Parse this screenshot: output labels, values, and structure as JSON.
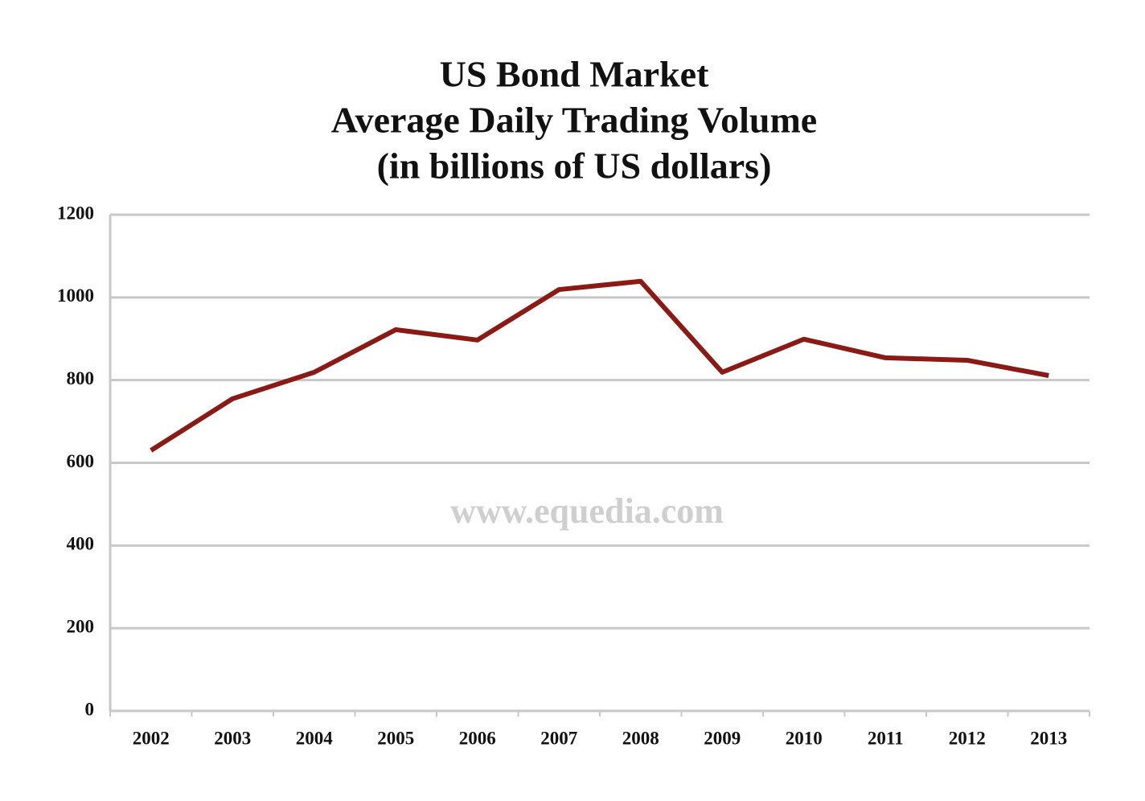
{
  "chart_data": {
    "type": "line",
    "title": [
      "US Bond Market",
      "Average Daily Trading Volume",
      "(in billions of US dollars)"
    ],
    "watermark": "www.equedia.com",
    "categories": [
      "2002",
      "2003",
      "2004",
      "2005",
      "2006",
      "2007",
      "2008",
      "2009",
      "2010",
      "2011",
      "2012",
      "2013"
    ],
    "series": [
      {
        "name": "Average Daily Trading Volume",
        "color": "#8b1a14",
        "values": [
          630,
          755,
          819,
          922,
          897,
          1019,
          1039,
          819,
          899,
          854,
          848,
          811
        ]
      }
    ],
    "ylim": [
      0,
      1200
    ],
    "yticks": [
      0,
      200,
      400,
      600,
      800,
      1000,
      1200
    ],
    "grid": true
  }
}
